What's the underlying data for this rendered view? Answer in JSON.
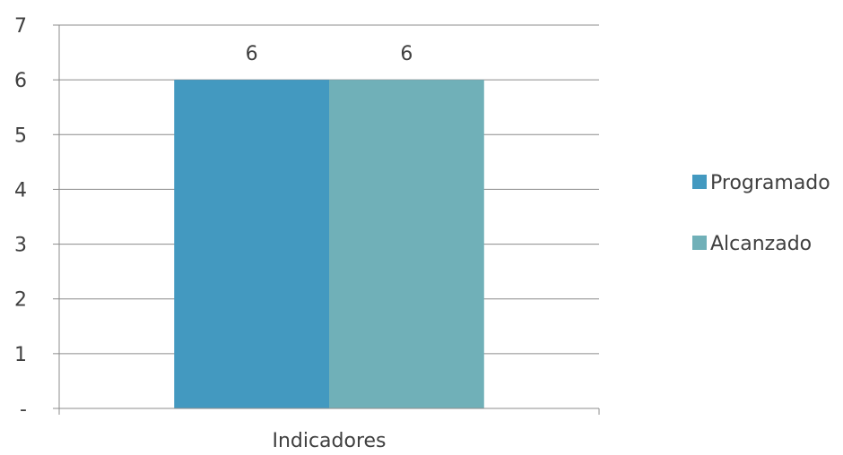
{
  "chart_data": {
    "type": "bar",
    "categories": [
      "Indicadores"
    ],
    "series": [
      {
        "name": "Programado",
        "values": [
          6
        ],
        "color": "#4399C0"
      },
      {
        "name": "Alcanzado",
        "values": [
          6
        ],
        "color": "#70B0B8"
      }
    ],
    "y_ticks": [
      "-",
      "1",
      "2",
      "3",
      "4",
      "5",
      "6",
      "7"
    ],
    "ylim": [
      0,
      7
    ],
    "data_labels": [
      "6",
      "6"
    ],
    "grid": true,
    "legend_position": "right",
    "title": "",
    "xlabel": "",
    "ylabel": ""
  }
}
